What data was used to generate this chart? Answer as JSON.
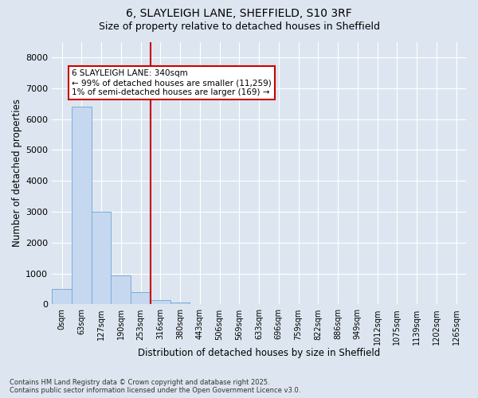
{
  "title_line1": "6, SLAYLEIGH LANE, SHEFFIELD, S10 3RF",
  "title_line2": "Size of property relative to detached houses in Sheffield",
  "xlabel": "Distribution of detached houses by size in Sheffield",
  "ylabel": "Number of detached properties",
  "bar_color": "#c5d8f0",
  "bar_edge_color": "#7aadd4",
  "background_color": "#dde6f0",
  "fig_background_color": "#dde6f0",
  "vline_color": "#cc0000",
  "vline_x": 4.5,
  "annotation_box_facecolor": "#ffffff",
  "annotation_border_color": "#cc0000",
  "annotation_text_line1": "6 SLAYLEIGH LANE: 340sqm",
  "annotation_text_line2": "← 99% of detached houses are smaller (11,259)",
  "annotation_text_line3": "1% of semi-detached houses are larger (169) →",
  "categories": [
    "0sqm",
    "63sqm",
    "127sqm",
    "190sqm",
    "253sqm",
    "316sqm",
    "380sqm",
    "443sqm",
    "506sqm",
    "569sqm",
    "633sqm",
    "696sqm",
    "759sqm",
    "822sqm",
    "886sqm",
    "949sqm",
    "1012sqm",
    "1075sqm",
    "1139sqm",
    "1202sqm",
    "1265sqm"
  ],
  "bar_heights": [
    500,
    6400,
    3000,
    950,
    400,
    150,
    60,
    0,
    0,
    0,
    0,
    0,
    0,
    0,
    0,
    0,
    0,
    0,
    0,
    0,
    0
  ],
  "ylim": [
    0,
    8500
  ],
  "yticks": [
    0,
    1000,
    2000,
    3000,
    4000,
    5000,
    6000,
    7000,
    8000
  ],
  "footnote_line1": "Contains HM Land Registry data © Crown copyright and database right 2025.",
  "footnote_line2": "Contains public sector information licensed under the Open Government Licence v3.0.",
  "figsize": [
    6.0,
    5.0
  ],
  "dpi": 100
}
